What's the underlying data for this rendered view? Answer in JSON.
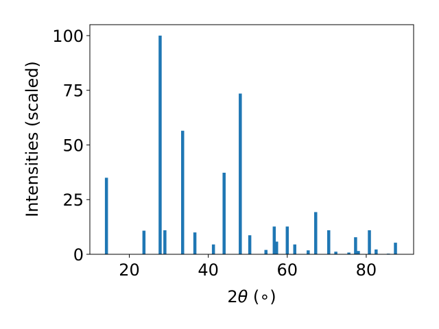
{
  "chart_data": {
    "type": "bar",
    "xlabel_prefix": "2",
    "xlabel_symbol": "θ",
    "xlabel_suffix": " (∘)",
    "ylabel": "Intensities (scaled)",
    "xlim": [
      10,
      92
    ],
    "ylim": [
      0,
      105
    ],
    "xticks": [
      20,
      40,
      60,
      80
    ],
    "yticks": [
      0,
      25,
      50,
      75,
      100
    ],
    "grid": false,
    "bar_color": "#1f77b4",
    "peaks": [
      {
        "x": 14.2,
        "y": 35.0
      },
      {
        "x": 23.7,
        "y": 10.8
      },
      {
        "x": 27.8,
        "y": 100.0
      },
      {
        "x": 29.0,
        "y": 11.0
      },
      {
        "x": 33.5,
        "y": 56.5
      },
      {
        "x": 36.6,
        "y": 10.0
      },
      {
        "x": 41.3,
        "y": 4.5
      },
      {
        "x": 44.0,
        "y": 37.3
      },
      {
        "x": 48.1,
        "y": 73.5
      },
      {
        "x": 50.5,
        "y": 8.7
      },
      {
        "x": 54.6,
        "y": 2.0
      },
      {
        "x": 56.7,
        "y": 12.7
      },
      {
        "x": 57.3,
        "y": 5.8
      },
      {
        "x": 60.0,
        "y": 12.7
      },
      {
        "x": 61.9,
        "y": 4.5
      },
      {
        "x": 65.3,
        "y": 1.8
      },
      {
        "x": 67.2,
        "y": 19.3
      },
      {
        "x": 70.5,
        "y": 11.0
      },
      {
        "x": 72.3,
        "y": 1.2
      },
      {
        "x": 75.6,
        "y": 0.8
      },
      {
        "x": 77.3,
        "y": 7.8
      },
      {
        "x": 78.0,
        "y": 1.5
      },
      {
        "x": 80.8,
        "y": 11.0
      },
      {
        "x": 82.5,
        "y": 2.2
      },
      {
        "x": 85.6,
        "y": 0.3
      },
      {
        "x": 87.4,
        "y": 5.3
      }
    ]
  }
}
